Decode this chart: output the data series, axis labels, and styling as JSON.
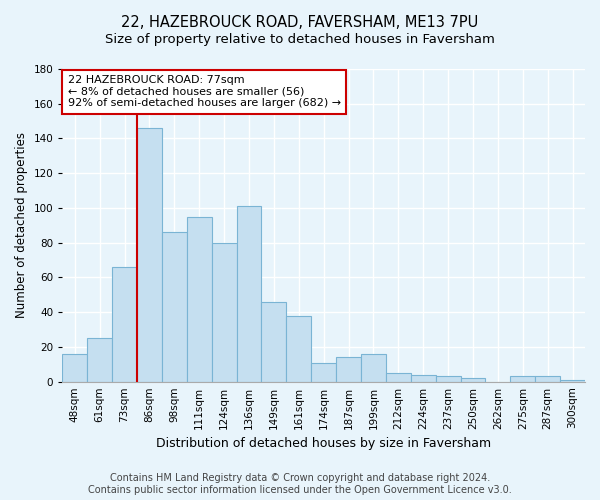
{
  "title": "22, HAZEBROUCK ROAD, FAVERSHAM, ME13 7PU",
  "subtitle": "Size of property relative to detached houses in Faversham",
  "xlabel": "Distribution of detached houses by size in Faversham",
  "ylabel": "Number of detached properties",
  "bin_labels": [
    "48sqm",
    "61sqm",
    "73sqm",
    "86sqm",
    "98sqm",
    "111sqm",
    "124sqm",
    "136sqm",
    "149sqm",
    "161sqm",
    "174sqm",
    "187sqm",
    "199sqm",
    "212sqm",
    "224sqm",
    "237sqm",
    "250sqm",
    "262sqm",
    "275sqm",
    "287sqm",
    "300sqm"
  ],
  "bar_heights": [
    16,
    25,
    66,
    146,
    86,
    95,
    80,
    101,
    46,
    38,
    11,
    14,
    16,
    5,
    4,
    3,
    2,
    0,
    3,
    3,
    1
  ],
  "bar_color": "#c5dff0",
  "bar_edge_color": "#7ab4d4",
  "ylim": [
    0,
    180
  ],
  "yticks": [
    0,
    20,
    40,
    60,
    80,
    100,
    120,
    140,
    160,
    180
  ],
  "property_bar_index": 2,
  "property_line_color": "#cc0000",
  "annotation_text": "22 HAZEBROUCK ROAD: 77sqm\n← 8% of detached houses are smaller (56)\n92% of semi-detached houses are larger (682) →",
  "annotation_box_color": "#ffffff",
  "annotation_box_edge_color": "#cc0000",
  "footer_line1": "Contains HM Land Registry data © Crown copyright and database right 2024.",
  "footer_line2": "Contains public sector information licensed under the Open Government Licence v3.0.",
  "background_color": "#e8f4fb",
  "grid_color": "#ffffff",
  "title_fontsize": 10.5,
  "subtitle_fontsize": 9.5,
  "xlabel_fontsize": 9,
  "ylabel_fontsize": 8.5,
  "tick_fontsize": 7.5,
  "annotation_fontsize": 8,
  "footer_fontsize": 7
}
